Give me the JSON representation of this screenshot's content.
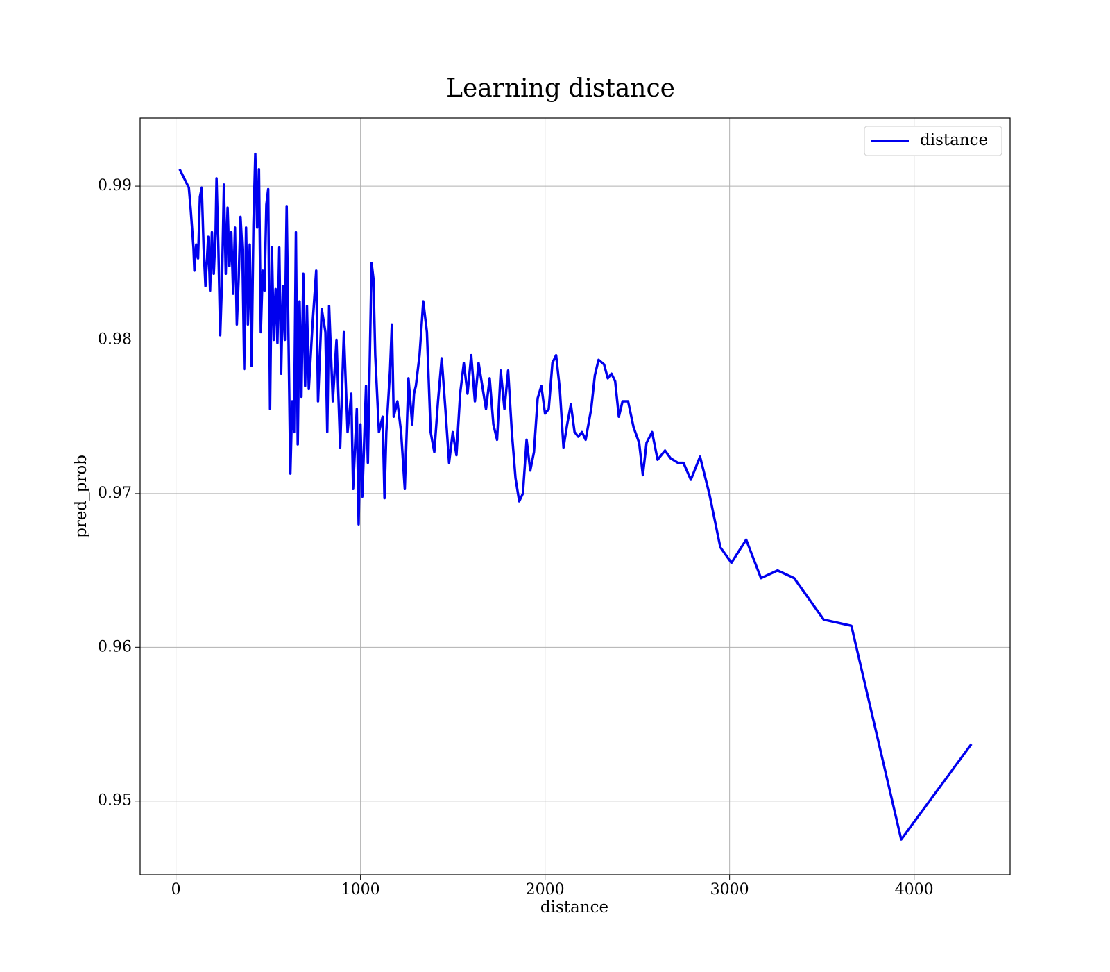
{
  "chart_data": {
    "type": "line",
    "title": "Learning distance",
    "x_label": "distance",
    "y_label": "pred_prob",
    "xlim": [
      -194,
      4520
    ],
    "ylim": [
      0.9452,
      0.99443
    ],
    "xticks": [
      0,
      1000,
      2000,
      3000,
      4000
    ],
    "yticks": [
      0.95,
      0.96,
      0.97,
      0.98,
      0.99
    ],
    "grid": true,
    "legend": "upper right",
    "x": [
      20,
      70,
      80,
      95,
      100,
      110,
      120,
      130,
      140,
      150,
      160,
      175,
      185,
      195,
      205,
      215,
      220,
      230,
      240,
      250,
      260,
      270,
      280,
      290,
      300,
      310,
      320,
      330,
      340,
      350,
      360,
      370,
      380,
      390,
      400,
      410,
      420,
      430,
      440,
      450,
      460,
      470,
      480,
      490,
      500,
      510,
      520,
      530,
      540,
      550,
      560,
      570,
      580,
      590,
      600,
      610,
      620,
      630,
      640,
      650,
      660,
      670,
      680,
      690,
      700,
      710,
      720,
      740,
      760,
      770,
      790,
      810,
      820,
      830,
      850,
      870,
      890,
      910,
      930,
      950,
      960,
      980,
      990,
      1000,
      1010,
      1030,
      1040,
      1060,
      1070,
      1080,
      1100,
      1120,
      1130,
      1140,
      1160,
      1170,
      1180,
      1200,
      1220,
      1240,
      1260,
      1280,
      1290,
      1300,
      1320,
      1340,
      1360,
      1380,
      1400,
      1420,
      1440,
      1460,
      1480,
      1500,
      1520,
      1540,
      1560,
      1580,
      1600,
      1620,
      1640,
      1660,
      1680,
      1700,
      1720,
      1740,
      1760,
      1780,
      1800,
      1820,
      1840,
      1860,
      1880,
      1900,
      1920,
      1940,
      1960,
      1980,
      2000,
      2020,
      2040,
      2060,
      2080,
      2100,
      2120,
      2140,
      2160,
      2180,
      2200,
      2220,
      2250,
      2270,
      2290,
      2320,
      2340,
      2360,
      2380,
      2400,
      2420,
      2450,
      2480,
      2510,
      2530,
      2550,
      2580,
      2610,
      2650,
      2680,
      2720,
      2750,
      2790,
      2840,
      2890,
      2950,
      3010,
      3090,
      3170,
      3260,
      3350,
      3510,
      3660,
      3930,
      4310
    ],
    "series": [
      {
        "name": "distance",
        "color": "#0000ee",
        "values": [
          0.9911,
          0.9899,
          0.9885,
          0.986,
          0.9845,
          0.9862,
          0.9853,
          0.9893,
          0.9899,
          0.986,
          0.9835,
          0.9867,
          0.9832,
          0.987,
          0.9843,
          0.987,
          0.9905,
          0.986,
          0.9803,
          0.984,
          0.9901,
          0.9843,
          0.9886,
          0.9848,
          0.987,
          0.983,
          0.9873,
          0.981,
          0.984,
          0.988,
          0.9858,
          0.9781,
          0.9873,
          0.981,
          0.9862,
          0.9783,
          0.9875,
          0.9921,
          0.9873,
          0.9911,
          0.9805,
          0.9845,
          0.9832,
          0.9888,
          0.9898,
          0.9755,
          0.986,
          0.98,
          0.9833,
          0.9798,
          0.986,
          0.9778,
          0.9835,
          0.98,
          0.9887,
          0.98,
          0.9713,
          0.976,
          0.974,
          0.987,
          0.9732,
          0.9825,
          0.9763,
          0.9843,
          0.977,
          0.9822,
          0.9768,
          0.981,
          0.9845,
          0.976,
          0.982,
          0.9805,
          0.974,
          0.9822,
          0.976,
          0.98,
          0.973,
          0.9805,
          0.974,
          0.9765,
          0.9703,
          0.9755,
          0.968,
          0.9745,
          0.9698,
          0.977,
          0.972,
          0.985,
          0.984,
          0.979,
          0.974,
          0.975,
          0.9697,
          0.974,
          0.978,
          0.981,
          0.975,
          0.976,
          0.974,
          0.9703,
          0.9775,
          0.9745,
          0.9765,
          0.977,
          0.979,
          0.9825,
          0.9805,
          0.974,
          0.9727,
          0.976,
          0.9788,
          0.9755,
          0.972,
          0.974,
          0.9725,
          0.9765,
          0.9785,
          0.9765,
          0.979,
          0.976,
          0.9785,
          0.977,
          0.9755,
          0.9775,
          0.9745,
          0.9735,
          0.978,
          0.9755,
          0.978,
          0.974,
          0.971,
          0.9695,
          0.97,
          0.9735,
          0.9715,
          0.9727,
          0.9762,
          0.977,
          0.9752,
          0.9755,
          0.9785,
          0.979,
          0.9768,
          0.973,
          0.9745,
          0.9758,
          0.974,
          0.9737,
          0.974,
          0.9735,
          0.9755,
          0.9777,
          0.9787,
          0.9784,
          0.9775,
          0.9778,
          0.9773,
          0.975,
          0.976,
          0.976,
          0.9743,
          0.9733,
          0.9712,
          0.9733,
          0.974,
          0.9722,
          0.9728,
          0.9723,
          0.972,
          0.972,
          0.9709,
          0.9724,
          0.97,
          0.9665,
          0.9655,
          0.967,
          0.9645,
          0.965,
          0.9645,
          0.9618,
          0.9614,
          0.9475,
          0.9537
        ]
      }
    ]
  }
}
